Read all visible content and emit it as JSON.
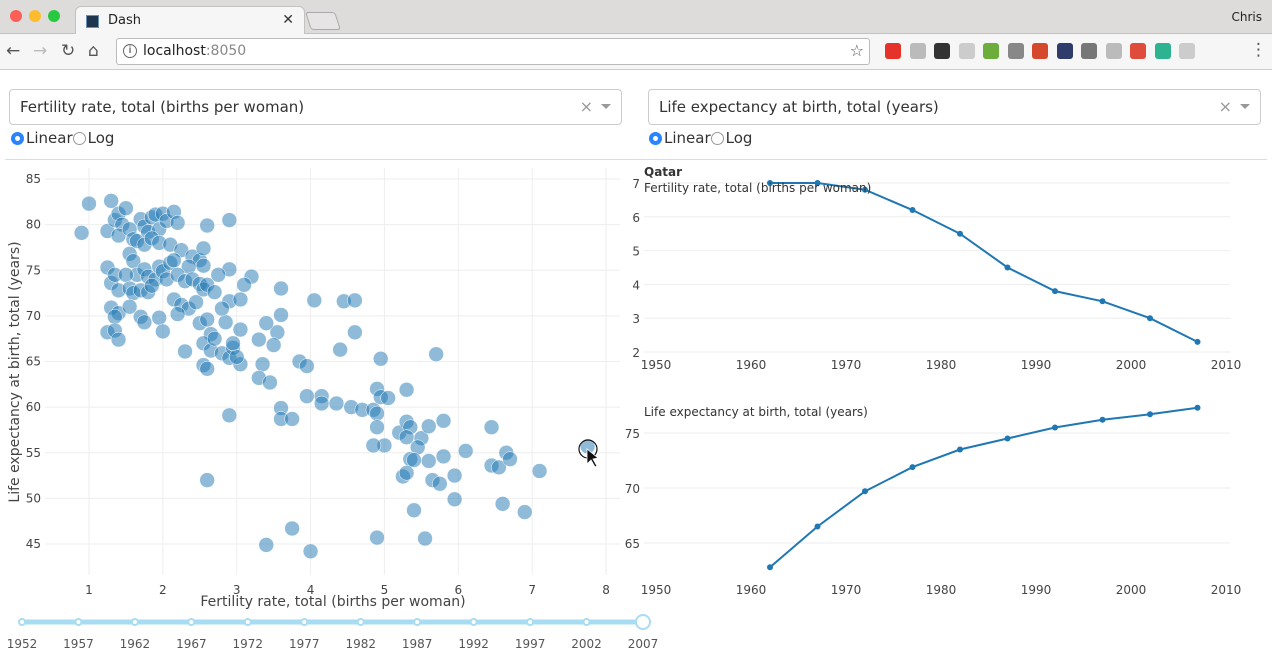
{
  "browser": {
    "tab_title": "Dash",
    "user": "Chris",
    "url_host": "localhost",
    "url_port": ":8050",
    "extension_colors": [
      "#e5332a",
      "#bbbbbb",
      "#333333",
      "#cccccc",
      "#6cad3b",
      "#888888",
      "#d5482b",
      "#2f3b6b",
      "#777777",
      "#bbbbbb",
      "#e04c3c",
      "#2db38f",
      "#cccccc"
    ]
  },
  "controls": {
    "xaxis": {
      "value": "Fertility rate, total (births per woman)",
      "type_options": [
        "Linear",
        "Log"
      ],
      "type_selected": "Linear"
    },
    "yaxis": {
      "value": "Life expectancy at birth, total (years)",
      "type_options": [
        "Linear",
        "Log"
      ],
      "type_selected": "Linear"
    }
  },
  "slider": {
    "marks": [
      "1952",
      "1957",
      "1962",
      "1967",
      "1972",
      "1977",
      "1982",
      "1987",
      "1992",
      "1997",
      "2002",
      "2007"
    ],
    "value": "2007",
    "accent": "#a7dcf2"
  },
  "chart_data": [
    {
      "type": "scatter",
      "xlabel": "Fertility rate, total (births per woman)",
      "ylabel": "Life expectancy at birth, total (years)",
      "xlim": [
        0.4,
        8.2
      ],
      "ylim": [
        42,
        86
      ],
      "xticks": [
        1,
        2,
        3,
        4,
        5,
        6,
        7,
        8
      ],
      "yticks": [
        45,
        50,
        55,
        60,
        65,
        70,
        75,
        80,
        85
      ],
      "grid": true,
      "color": "#1f77b4",
      "points": [
        [
          0.9,
          79.1
        ],
        [
          1.0,
          82.3
        ],
        [
          1.3,
          82.6
        ],
        [
          2.9,
          80.5
        ],
        [
          2.6,
          79.9
        ],
        [
          2.9,
          75.1
        ],
        [
          3.2,
          74.3
        ],
        [
          3.6,
          73.0
        ],
        [
          4.05,
          71.7
        ],
        [
          4.45,
          71.6
        ],
        [
          4.6,
          71.7
        ],
        [
          4.6,
          68.2
        ],
        [
          3.6,
          70.1
        ],
        [
          3.55,
          68.2
        ],
        [
          3.4,
          69.2
        ],
        [
          3.3,
          67.4
        ],
        [
          3.5,
          66.8
        ],
        [
          3.85,
          65.0
        ],
        [
          3.95,
          64.5
        ],
        [
          3.35,
          64.7
        ],
        [
          3.3,
          63.2
        ],
        [
          3.45,
          62.7
        ],
        [
          3.95,
          61.2
        ],
        [
          4.15,
          61.2
        ],
        [
          4.15,
          60.4
        ],
        [
          4.35,
          60.4
        ],
        [
          4.55,
          60.0
        ],
        [
          4.7,
          59.7
        ],
        [
          4.85,
          59.7
        ],
        [
          4.9,
          62.0
        ],
        [
          4.95,
          61.1
        ],
        [
          5.05,
          61.0
        ],
        [
          4.9,
          59.3
        ],
        [
          4.9,
          57.8
        ],
        [
          4.95,
          65.3
        ],
        [
          5.7,
          65.8
        ],
        [
          4.4,
          66.3
        ],
        [
          3.6,
          59.9
        ],
        [
          3.6,
          58.7
        ],
        [
          3.75,
          58.7
        ],
        [
          2.9,
          59.1
        ],
        [
          5.3,
          61.9
        ],
        [
          5.2,
          57.2
        ],
        [
          5.3,
          58.4
        ],
        [
          5.35,
          57.8
        ],
        [
          5.5,
          56.6
        ],
        [
          5.6,
          57.9
        ],
        [
          5.8,
          58.5
        ],
        [
          5.3,
          56.7
        ],
        [
          5.0,
          55.8
        ],
        [
          4.85,
          55.8
        ],
        [
          5.45,
          55.6
        ],
        [
          5.35,
          54.3
        ],
        [
          5.4,
          54.2
        ],
        [
          5.6,
          54.1
        ],
        [
          5.8,
          54.6
        ],
        [
          5.95,
          52.5
        ],
        [
          5.65,
          52.0
        ],
        [
          5.75,
          51.6
        ],
        [
          5.25,
          52.4
        ],
        [
          5.3,
          52.8
        ],
        [
          5.95,
          49.9
        ],
        [
          6.1,
          55.2
        ],
        [
          6.45,
          57.8
        ],
        [
          6.45,
          53.6
        ],
        [
          6.55,
          53.4
        ],
        [
          6.65,
          55.0
        ],
        [
          6.7,
          54.3
        ],
        [
          7.1,
          53.0
        ],
        [
          6.6,
          49.4
        ],
        [
          6.9,
          48.5
        ],
        [
          5.4,
          48.7
        ],
        [
          5.55,
          45.6
        ],
        [
          4.9,
          45.7
        ],
        [
          4.0,
          44.2
        ],
        [
          3.4,
          44.9
        ],
        [
          3.75,
          46.7
        ],
        [
          2.6,
          52.0
        ],
        [
          7.75,
          55.7
        ],
        [
          1.25,
          79.3
        ],
        [
          1.35,
          80.5
        ],
        [
          1.4,
          81.2
        ],
        [
          1.45,
          80.0
        ],
        [
          1.5,
          81.8
        ],
        [
          1.4,
          78.8
        ],
        [
          1.55,
          79.5
        ],
        [
          1.6,
          78.4
        ],
        [
          1.7,
          80.6
        ],
        [
          1.75,
          79.8
        ],
        [
          1.8,
          79.2
        ],
        [
          1.85,
          80.8
        ],
        [
          1.9,
          81.1
        ],
        [
          1.95,
          79.5
        ],
        [
          2.0,
          81.2
        ],
        [
          2.05,
          80.4
        ],
        [
          2.15,
          81.4
        ],
        [
          2.2,
          80.2
        ],
        [
          1.65,
          78.2
        ],
        [
          1.75,
          77.8
        ],
        [
          1.85,
          78.5
        ],
        [
          1.95,
          78.0
        ],
        [
          2.1,
          77.8
        ],
        [
          2.25,
          77.2
        ],
        [
          2.4,
          76.5
        ],
        [
          2.5,
          76.1
        ],
        [
          2.55,
          77.4
        ],
        [
          2.35,
          75.4
        ],
        [
          2.55,
          75.5
        ],
        [
          1.55,
          76.8
        ],
        [
          1.6,
          76.0
        ],
        [
          1.65,
          74.5
        ],
        [
          1.75,
          75.1
        ],
        [
          1.8,
          74.3
        ],
        [
          1.9,
          74.0
        ],
        [
          1.95,
          75.4
        ],
        [
          2.0,
          74.9
        ],
        [
          2.05,
          74.0
        ],
        [
          2.1,
          75.8
        ],
        [
          2.15,
          76.1
        ],
        [
          2.2,
          74.5
        ],
        [
          2.3,
          73.8
        ],
        [
          2.4,
          74.0
        ],
        [
          2.5,
          73.5
        ],
        [
          2.55,
          72.9
        ],
        [
          2.6,
          73.4
        ],
        [
          2.7,
          72.6
        ],
        [
          2.75,
          74.5
        ],
        [
          1.25,
          75.3
        ],
        [
          1.3,
          73.6
        ],
        [
          1.35,
          74.5
        ],
        [
          1.4,
          72.8
        ],
        [
          1.5,
          74.5
        ],
        [
          1.55,
          73.0
        ],
        [
          1.6,
          72.5
        ],
        [
          1.7,
          72.8
        ],
        [
          1.8,
          72.6
        ],
        [
          1.85,
          73.3
        ],
        [
          1.3,
          70.9
        ],
        [
          1.4,
          70.3
        ],
        [
          1.35,
          69.9
        ],
        [
          1.25,
          68.2
        ],
        [
          1.35,
          68.4
        ],
        [
          1.4,
          67.4
        ],
        [
          1.55,
          71.0
        ],
        [
          1.7,
          69.9
        ],
        [
          1.75,
          69.3
        ],
        [
          1.95,
          69.8
        ],
        [
          2.0,
          68.3
        ],
        [
          2.15,
          71.8
        ],
        [
          2.25,
          71.2
        ],
        [
          2.35,
          70.8
        ],
        [
          2.2,
          70.2
        ],
        [
          2.45,
          71.5
        ],
        [
          2.5,
          69.2
        ],
        [
          2.6,
          69.6
        ],
        [
          2.65,
          68.0
        ],
        [
          2.55,
          67.0
        ],
        [
          2.65,
          66.2
        ],
        [
          2.55,
          64.6
        ],
        [
          2.6,
          64.2
        ],
        [
          2.8,
          65.9
        ],
        [
          2.9,
          65.4
        ],
        [
          2.95,
          66.5
        ],
        [
          3.05,
          64.7
        ],
        [
          3.0,
          65.5
        ],
        [
          2.3,
          66.1
        ],
        [
          2.7,
          67.5
        ],
        [
          2.85,
          69.3
        ],
        [
          2.9,
          71.6
        ],
        [
          3.05,
          71.8
        ],
        [
          3.1,
          73.4
        ],
        [
          3.05,
          68.5
        ],
        [
          2.8,
          70.8
        ],
        [
          2.95,
          67.0
        ]
      ]
    },
    {
      "type": "line",
      "country": "Qatar",
      "title": "Fertility rate, total (births per woman)",
      "xlim": [
        1950,
        2010
      ],
      "ylim": [
        2,
        7
      ],
      "xticks": [
        1950,
        1960,
        1970,
        1980,
        1990,
        2000,
        2010
      ],
      "yticks": [
        2,
        3,
        4,
        5,
        6,
        7
      ],
      "color": "#1f77b4",
      "x": [
        1962,
        1967,
        1972,
        1977,
        1982,
        1987,
        1992,
        1997,
        2002,
        2007
      ],
      "y": [
        7.0,
        7.0,
        6.8,
        6.2,
        5.5,
        4.5,
        3.8,
        3.5,
        3.0,
        2.3
      ]
    },
    {
      "type": "line",
      "title": "Life expectancy at birth, total (years)",
      "xlim": [
        1950,
        2010
      ],
      "ylim": [
        62.5,
        78
      ],
      "xticks": [
        1950,
        1960,
        1970,
        1980,
        1990,
        2000,
        2010
      ],
      "yticks": [
        65,
        70,
        75
      ],
      "color": "#1f77b4",
      "x": [
        1962,
        1967,
        1972,
        1977,
        1982,
        1987,
        1992,
        1997,
        2002,
        2007
      ],
      "y": [
        62.8,
        66.5,
        69.7,
        71.9,
        73.5,
        74.5,
        75.5,
        76.2,
        76.7,
        77.3
      ]
    }
  ]
}
